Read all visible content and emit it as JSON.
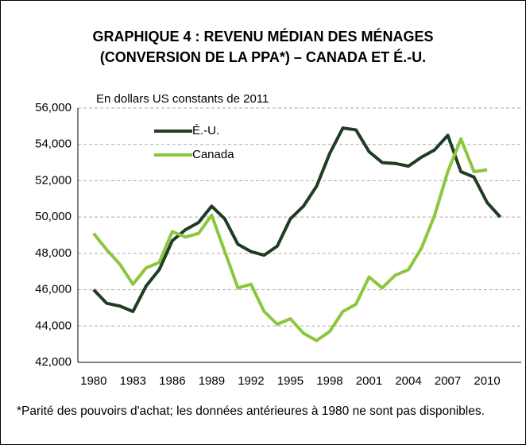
{
  "chart_data": {
    "type": "line",
    "title": [
      "GRAPHIQUE 4 : REVENU MÉDIAN DES MÉNAGES",
      "(CONVERSION DE LA PPA*) – CANADA ET É.-U."
    ],
    "subtitle": "En dollars US constants de 2011",
    "footnote": "*Parité des pouvoirs d'achat; les données antérieures à 1980 ne sont pas disponibles.",
    "x": [
      1980,
      1981,
      1982,
      1983,
      1984,
      1985,
      1986,
      1987,
      1988,
      1989,
      1990,
      1991,
      1992,
      1993,
      1994,
      1995,
      1996,
      1997,
      1998,
      1999,
      2000,
      2001,
      2002,
      2003,
      2004,
      2005,
      2006,
      2007,
      2008,
      2009,
      2010,
      2011
    ],
    "series": [
      {
        "name": "É.-U.",
        "color": "#1e3d24",
        "values": [
          46000,
          45250,
          45100,
          44800,
          46200,
          47100,
          48700,
          49300,
          49700,
          50600,
          49900,
          48500,
          48100,
          47900,
          48400,
          49900,
          50600,
          51700,
          53500,
          54900,
          54800,
          53600,
          53000,
          52950,
          52800,
          53300,
          53700,
          54500,
          52500,
          52200,
          50800,
          50000
        ]
      },
      {
        "name": "Canada",
        "color": "#8cc63f",
        "values": [
          49100,
          48200,
          47400,
          46300,
          47200,
          47500,
          49200,
          48900,
          49100,
          50100,
          48100,
          46100,
          46300,
          44800,
          44100,
          44400,
          43600,
          43200,
          43700,
          44800,
          45200,
          46700,
          46100,
          46800,
          47100,
          48300,
          50100,
          52500,
          54300,
          52500,
          52600,
          null
        ]
      }
    ],
    "xlim": [
      1978.8,
      2012.6
    ],
    "xticks": [
      1980,
      1983,
      1986,
      1989,
      1992,
      1995,
      1998,
      2001,
      2004,
      2007,
      2010
    ],
    "ylim": [
      42000,
      56000
    ],
    "yticks": [
      {
        "value": 42000,
        "label": "42,000"
      },
      {
        "value": 44000,
        "label": "44,000"
      },
      {
        "value": 46000,
        "label": "46,000"
      },
      {
        "value": 48000,
        "label": "48,000"
      },
      {
        "value": 50000,
        "label": "50,000"
      },
      {
        "value": 52000,
        "label": "52,000"
      },
      {
        "value": 54000,
        "label": "54,000"
      },
      {
        "value": 56000,
        "label": "56,000"
      }
    ],
    "grid": true,
    "legend": "upper left"
  }
}
